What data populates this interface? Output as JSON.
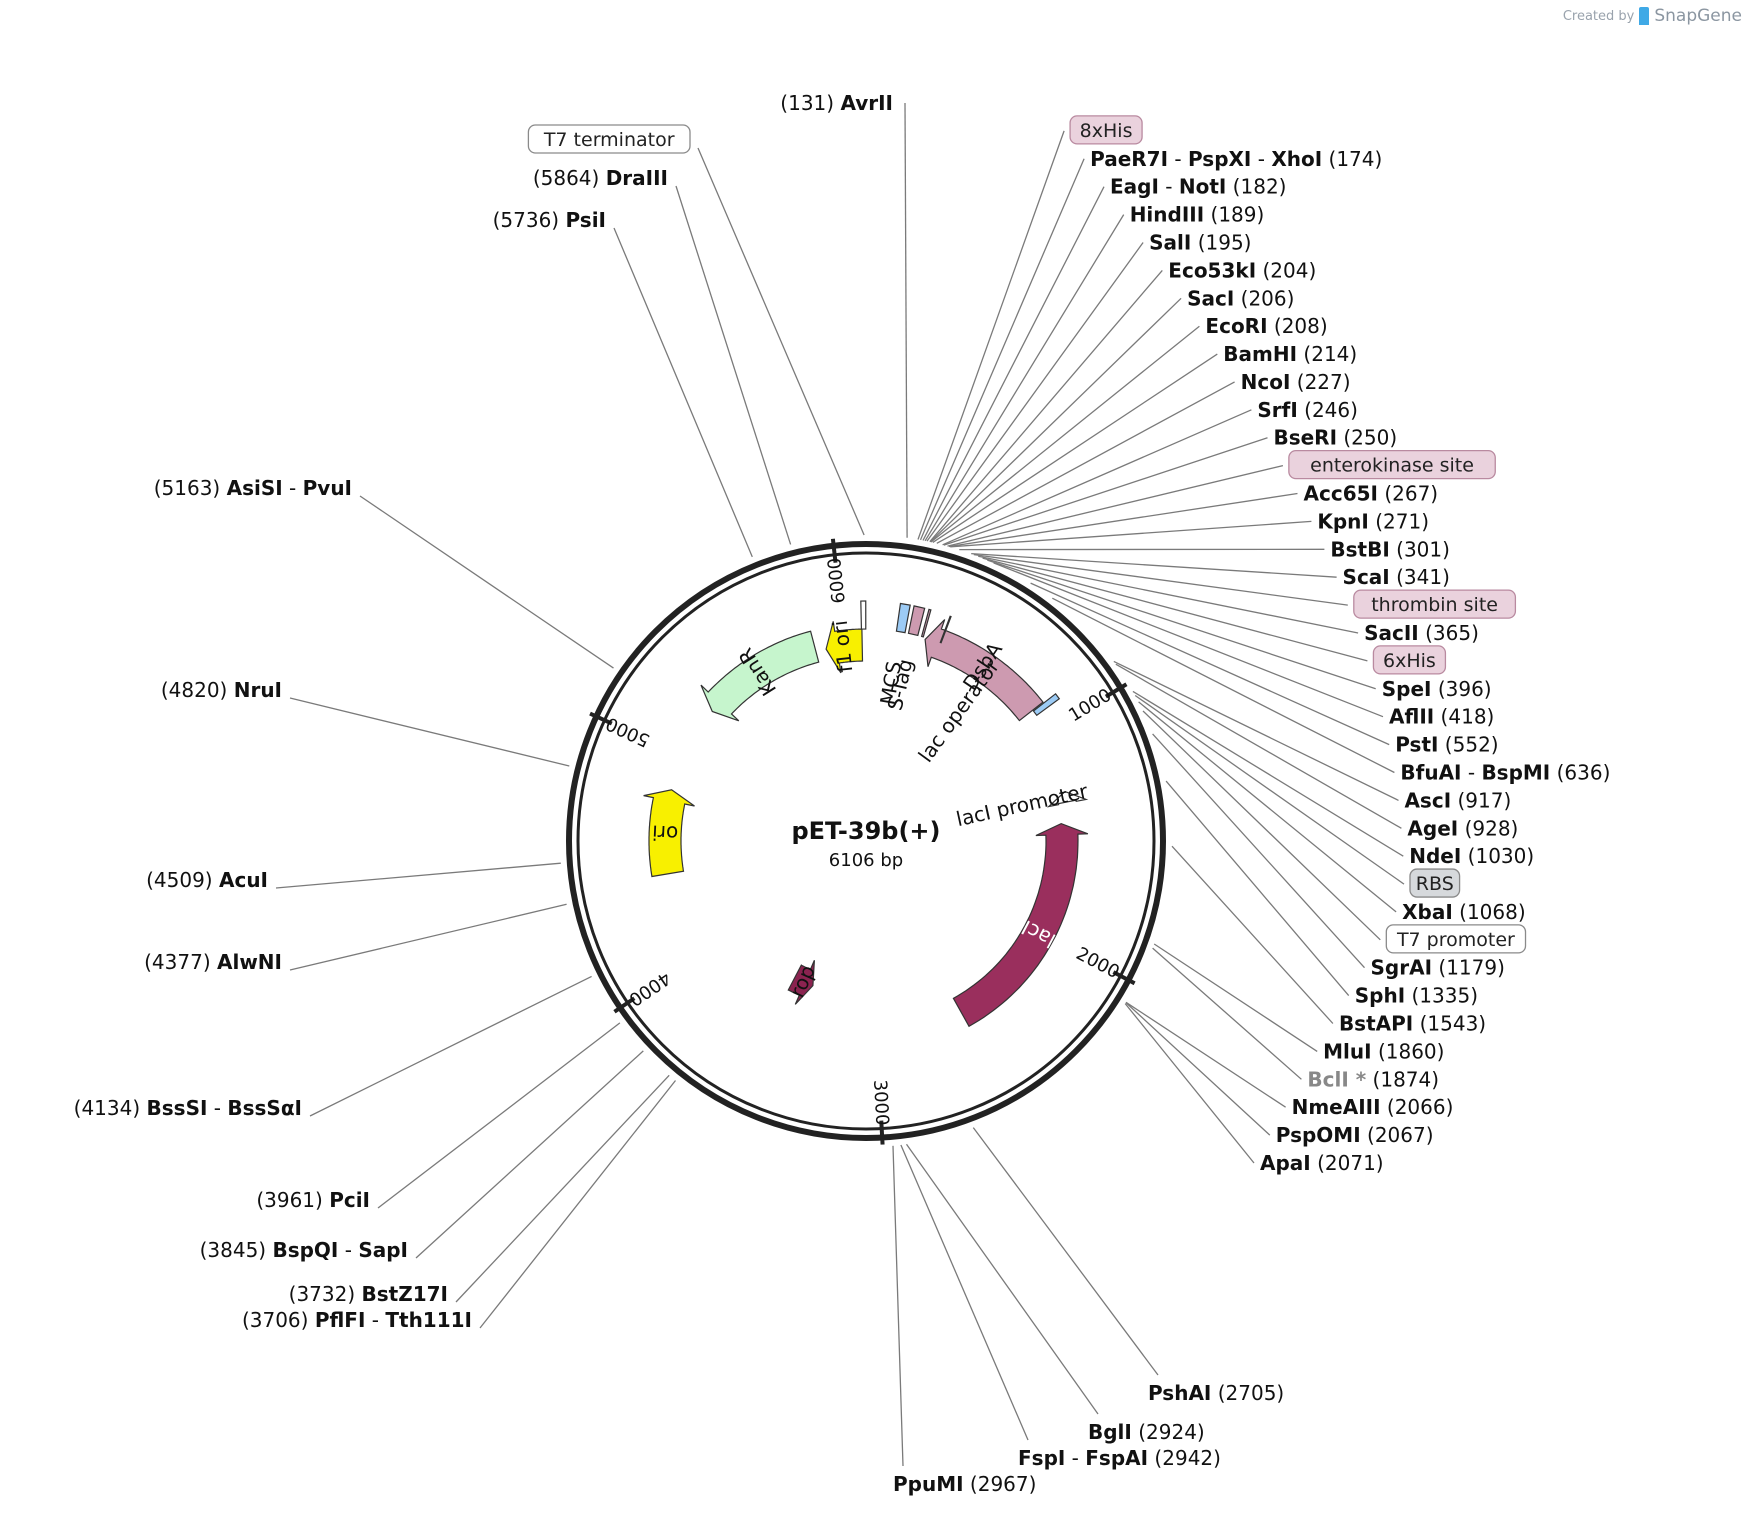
{
  "watermark": {
    "prefix": "Created by",
    "brand": "SnapGene"
  },
  "plasmid": {
    "name": "pET-39b(+)",
    "size": "6106 bp",
    "length": 6106
  },
  "ticks": [
    {
      "pos": 1000,
      "label": "1000"
    },
    {
      "pos": 2000,
      "label": "2000"
    },
    {
      "pos": 3000,
      "label": "3000"
    },
    {
      "pos": 4000,
      "label": "4000"
    },
    {
      "pos": 5000,
      "label": "5000"
    },
    {
      "pos": 6000,
      "label": "6000"
    }
  ],
  "colors": {
    "backbone": "#222222",
    "leader": "#7a7a7a",
    "yellow": "#f8f000",
    "kanR": "#c6f5cd",
    "pink": "#cd9ab0",
    "lacI": "#9a2f5d",
    "rop": "#8b2350",
    "blue": "#9ccbf5"
  },
  "features": [
    {
      "name": "f1 ori",
      "start": 5907,
      "end": 6087,
      "dir": "rev",
      "color": "#f8f000",
      "label_color": "#111111"
    },
    {
      "name": "KanR",
      "start": 5260,
      "end": 5855,
      "dir": "rev",
      "color": "#c6f5cd",
      "label_color": "#111111"
    },
    {
      "name": "ori",
      "start": 4420,
      "end": 4830,
      "dir": "fwd",
      "color": "#f8f000",
      "label_color": "#111111"
    },
    {
      "name": "rop",
      "start": 3395,
      "end": 3520,
      "dir": "rev",
      "color": "#8b2350",
      "label_color": "#111111"
    },
    {
      "name": "DsbA",
      "start": 277,
      "end": 880,
      "dir": "rev",
      "color": "#cd9ab0",
      "label_color": "#111111"
    },
    {
      "name": "lacI",
      "start": 1440,
      "end": 2560,
      "dir": "rev",
      "color": "#9a2f5d",
      "label_color": "#ffffff"
    },
    {
      "name": "lacI promoter",
      "start": 1290,
      "end": 1340,
      "dir": "rev",
      "color": "#ffffff",
      "label_color": "#111111"
    }
  ],
  "small_features": [
    {
      "name": "T7 terminator",
      "start": 6085,
      "end": 6105,
      "color": "#ffffff"
    },
    {
      "name": "MCS",
      "start": 140,
      "end": 180,
      "color": "#9ccbf5"
    },
    {
      "name": "S-Tag",
      "start": 196,
      "end": 240,
      "color": "#cd9ab0"
    },
    {
      "name": "enterokinase",
      "start": 258,
      "end": 266,
      "color": "#cd9ab0"
    },
    {
      "name": "thrombin",
      "start": 348,
      "end": 352,
      "color": "#cd9ab0"
    },
    {
      "name": "lac operator",
      "start": 885,
      "end": 910,
      "color": "#9ccbf5"
    }
  ],
  "feature_text": [
    {
      "text": "MCS",
      "pos": 160
    },
    {
      "text": "S-Tag",
      "pos": 218
    },
    {
      "text": "lac operator",
      "pos": 610
    },
    {
      "text": "lacI promoter",
      "pos": 1315
    }
  ],
  "right_labels": [
    {
      "pos": 131,
      "name": "AvrII",
      "num": "(131)",
      "numFirst": true
    },
    {
      "pos": 166,
      "boxed": "8xHis",
      "box": "pink"
    },
    {
      "pos": 174,
      "name": "PaeR7I - PspXI - XhoI",
      "num": "(174)"
    },
    {
      "pos": 182,
      "name": "EagI - NotI",
      "num": "(182)"
    },
    {
      "pos": 189,
      "name": "HindIII",
      "num": "(189)"
    },
    {
      "pos": 195,
      "name": "SalI",
      "num": "(195)"
    },
    {
      "pos": 204,
      "name": "Eco53kI",
      "num": "(204)"
    },
    {
      "pos": 206,
      "name": "SacI",
      "num": "(206)"
    },
    {
      "pos": 208,
      "name": "EcoRI",
      "num": "(208)"
    },
    {
      "pos": 214,
      "name": "BamHI",
      "num": "(214)"
    },
    {
      "pos": 227,
      "name": "NcoI",
      "num": "(227)"
    },
    {
      "pos": 246,
      "name": "SrfI",
      "num": "(246)"
    },
    {
      "pos": 250,
      "name": "BseRI",
      "num": "(250)"
    },
    {
      "pos": 262,
      "boxed": "enterokinase site",
      "box": "pink"
    },
    {
      "pos": 267,
      "name": "Acc65I",
      "num": "(267)"
    },
    {
      "pos": 271,
      "name": "KpnI",
      "num": "(271)"
    },
    {
      "pos": 301,
      "name": "BstBI",
      "num": "(301)"
    },
    {
      "pos": 341,
      "name": "ScaI",
      "num": "(341)"
    },
    {
      "pos": 350,
      "boxed": "thrombin site",
      "box": "pink"
    },
    {
      "pos": 365,
      "name": "SacII",
      "num": "(365)"
    },
    {
      "pos": 380,
      "boxed": "6xHis",
      "box": "pink"
    },
    {
      "pos": 396,
      "name": "SpeI",
      "num": "(396)"
    },
    {
      "pos": 418,
      "name": "AflII",
      "num": "(418)"
    },
    {
      "pos": 552,
      "name": "PstI",
      "num": "(552)"
    },
    {
      "pos": 636,
      "name": "BfuAI - BspMI",
      "num": "(636)"
    },
    {
      "pos": 917,
      "name": "AscI",
      "num": "(917)"
    },
    {
      "pos": 928,
      "name": "AgeI",
      "num": "(928)"
    },
    {
      "pos": 1030,
      "name": "NdeI",
      "num": "(1030)"
    },
    {
      "pos": 1045,
      "boxed": "RBS",
      "box": "gray"
    },
    {
      "pos": 1068,
      "name": "XbaI",
      "num": "(1068)"
    },
    {
      "pos": 1100,
      "boxed": "T7 promoter",
      "box": "white"
    },
    {
      "pos": 1179,
      "name": "SgrAI",
      "num": "(1179)"
    },
    {
      "pos": 1335,
      "name": "SphI",
      "num": "(1335)"
    },
    {
      "pos": 1543,
      "name": "BstAPI",
      "num": "(1543)"
    },
    {
      "pos": 1860,
      "name": "MluI",
      "num": "(1860)"
    },
    {
      "pos": 1874,
      "name": "BclI *",
      "num": "(1874)",
      "gray": true
    },
    {
      "pos": 2066,
      "name": "NmeAIII",
      "num": "(2066)"
    },
    {
      "pos": 2067,
      "name": "PspOMI",
      "num": "(2067)"
    },
    {
      "pos": 2071,
      "name": "ApaI",
      "num": "(2071)"
    }
  ],
  "bottom_labels": [
    {
      "pos": 2705,
      "name": "PshAI",
      "num": "(2705)"
    },
    {
      "pos": 2924,
      "name": "BglI",
      "num": "(2924)"
    },
    {
      "pos": 2942,
      "name": "FspI - FspAI",
      "num": "(2942)"
    },
    {
      "pos": 2967,
      "name": "PpuMI",
      "num": "(2967)"
    }
  ],
  "left_labels": [
    {
      "pos": 6100,
      "boxed": "T7 terminator",
      "box": "white"
    },
    {
      "pos": 5864,
      "name": "DraIII",
      "num": "(5864)"
    },
    {
      "pos": 5736,
      "name": "PsiI",
      "num": "(5736)"
    },
    {
      "pos": 5163,
      "name": "AsiSI - PvuI",
      "num": "(5163)"
    },
    {
      "pos": 4820,
      "name": "NruI",
      "num": "(4820)"
    },
    {
      "pos": 4509,
      "name": "AcuI",
      "num": "(4509)"
    },
    {
      "pos": 4377,
      "name": "AlwNI",
      "num": "(4377)"
    },
    {
      "pos": 4134,
      "name": "BssSI - BssSαI",
      "num": "(4134)"
    },
    {
      "pos": 3961,
      "name": "PciI",
      "num": "(3961)"
    },
    {
      "pos": 3845,
      "name": "BspQI - SapI",
      "num": "(3845)"
    },
    {
      "pos": 3732,
      "name": "BstZ17I",
      "num": "(3732)"
    },
    {
      "pos": 3706,
      "name": "PflFI - Tth111I",
      "num": "(3706)"
    }
  ]
}
